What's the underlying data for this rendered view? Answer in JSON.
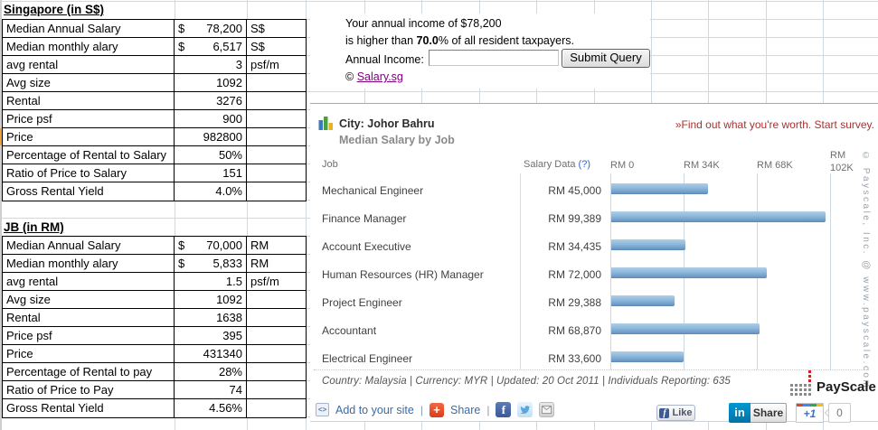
{
  "sheet": {
    "tables": [
      {
        "title": "Singapore (in S$)",
        "rows": [
          {
            "label": "Median Annual Salary",
            "cur": "$",
            "value": "78,200",
            "unit": "S$"
          },
          {
            "label": "Median monthly alary",
            "cur": "$",
            "value": "6,517",
            "unit": "S$"
          },
          {
            "label": "avg rental",
            "cur": "",
            "value": "3",
            "unit": "psf/m"
          },
          {
            "label": "Avg size",
            "cur": "",
            "value": "1092",
            "unit": ""
          },
          {
            "label": "Rental",
            "cur": "",
            "value": "3276",
            "unit": ""
          },
          {
            "label": "Price psf",
            "cur": "",
            "value": "900",
            "unit": ""
          },
          {
            "label": "Price",
            "cur": "",
            "value": "982800",
            "unit": ""
          },
          {
            "label": "Percentage of Rental to Salary",
            "cur": "",
            "value": "50%",
            "unit": ""
          },
          {
            "label": "Ratio of Price to Salary",
            "cur": "",
            "value": "151",
            "unit": ""
          },
          {
            "label": "Gross Rental Yield",
            "cur": "",
            "value": "4.0%",
            "unit": ""
          }
        ]
      },
      {
        "title": "JB (in RM)",
        "rows": [
          {
            "label": "Median Annual Salary",
            "cur": "$",
            "value": "70,000",
            "unit": "RM"
          },
          {
            "label": "Median monthly alary",
            "cur": "$",
            "value": "5,833",
            "unit": "RM"
          },
          {
            "label": "avg rental",
            "cur": "",
            "value": "1.5",
            "unit": "psf/m"
          },
          {
            "label": "Avg size",
            "cur": "",
            "value": "1092",
            "unit": ""
          },
          {
            "label": "Rental",
            "cur": "",
            "value": "1638",
            "unit": ""
          },
          {
            "label": "Price psf",
            "cur": "",
            "value": "395",
            "unit": ""
          },
          {
            "label": "Price",
            "cur": "",
            "value": "431340",
            "unit": ""
          },
          {
            "label": "Percentage of Rental to pay",
            "cur": "",
            "value": "28%",
            "unit": ""
          },
          {
            "label": "Ratio of Price to Pay",
            "cur": "",
            "value": "74",
            "unit": ""
          },
          {
            "label": "Gross Rental Yield",
            "cur": "",
            "value": "4.56%",
            "unit": ""
          }
        ]
      }
    ]
  },
  "income_widget": {
    "line1": "Your annual income of $78,200",
    "line2_pre": "is higher than ",
    "line2_bold": "70.0",
    "line2_post": "% of all resident taxpayers.",
    "input_label": "Annual Income:",
    "input_value": "",
    "button": "Submit Query",
    "copyright_symbol": "©",
    "link": "Salary.sg"
  },
  "chart_widget": {
    "city_label": "City: Johor Bahru",
    "subtitle": "Median Salary by Job",
    "survey": "»Find out what you're worth. Start survey.",
    "col_job": "Job",
    "col_salary": "Salary Data ",
    "col_salary_q": "(?)",
    "footer": "Country: Malaysia | Currency: MYR | Updated: 20 Oct 2011 | Individuals Reporting: 635",
    "copyright_vertical": "© Payscale, Inc. @ www.payscale.com",
    "logo_text": "PayScale",
    "add_link": "Add to your site",
    "share_link": "Share",
    "like_label": "Like",
    "linkedin_in": "in",
    "linkedin_share": "Share",
    "plusone": "+1",
    "plusone_count": "0"
  },
  "chart_data": {
    "type": "bar",
    "title": "Median Salary by Job",
    "city": "Johor Bahru",
    "categories": [
      "Mechanical Engineer",
      "Finance Manager",
      "Account Executive",
      "Human Resources (HR) Manager",
      "Project Engineer",
      "Accountant",
      "Electrical Engineer"
    ],
    "values": [
      45000,
      99389,
      34435,
      72000,
      29388,
      68870,
      33600
    ],
    "value_labels": [
      "RM 45,000",
      "RM 99,389",
      "RM 34,435",
      "RM 72,000",
      "RM 29,388",
      "RM 68,870",
      "RM 33,600"
    ],
    "x_ticks": [
      "RM 0",
      "RM 34K",
      "RM 68K",
      "RM 102K"
    ],
    "x_tick_values": [
      0,
      34000,
      68000,
      102000
    ],
    "xlim": [
      0,
      102000
    ],
    "currency": "MYR",
    "bar_color": "#7fa9d2",
    "legend": null,
    "grid": "vertical"
  }
}
